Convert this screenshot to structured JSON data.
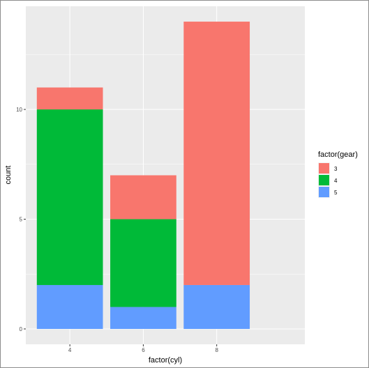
{
  "chart_data": {
    "type": "bar",
    "stacked": true,
    "title": "",
    "xlabel": "factor(cyl)",
    "ylabel": "count",
    "categories": [
      "4",
      "6",
      "8"
    ],
    "ylim": [
      -0.7,
      14.7
    ],
    "yticks": [
      0,
      5,
      10
    ],
    "yticklabels": [
      "0",
      "5",
      "10"
    ],
    "grid": true,
    "legend": {
      "title": "factor(gear)",
      "placement": "right",
      "entries": [
        "3",
        "4",
        "5"
      ]
    },
    "series": [
      {
        "name": "5",
        "color": "#619CFF",
        "values": [
          2,
          1,
          2
        ]
      },
      {
        "name": "4",
        "color": "#00BA38",
        "values": [
          8,
          4,
          0
        ]
      },
      {
        "name": "3",
        "color": "#F8766D",
        "values": [
          1,
          2,
          12
        ]
      }
    ],
    "colors": {
      "panel_background": "#EBEBEB",
      "grid_major": "#FFFFFF"
    }
  }
}
